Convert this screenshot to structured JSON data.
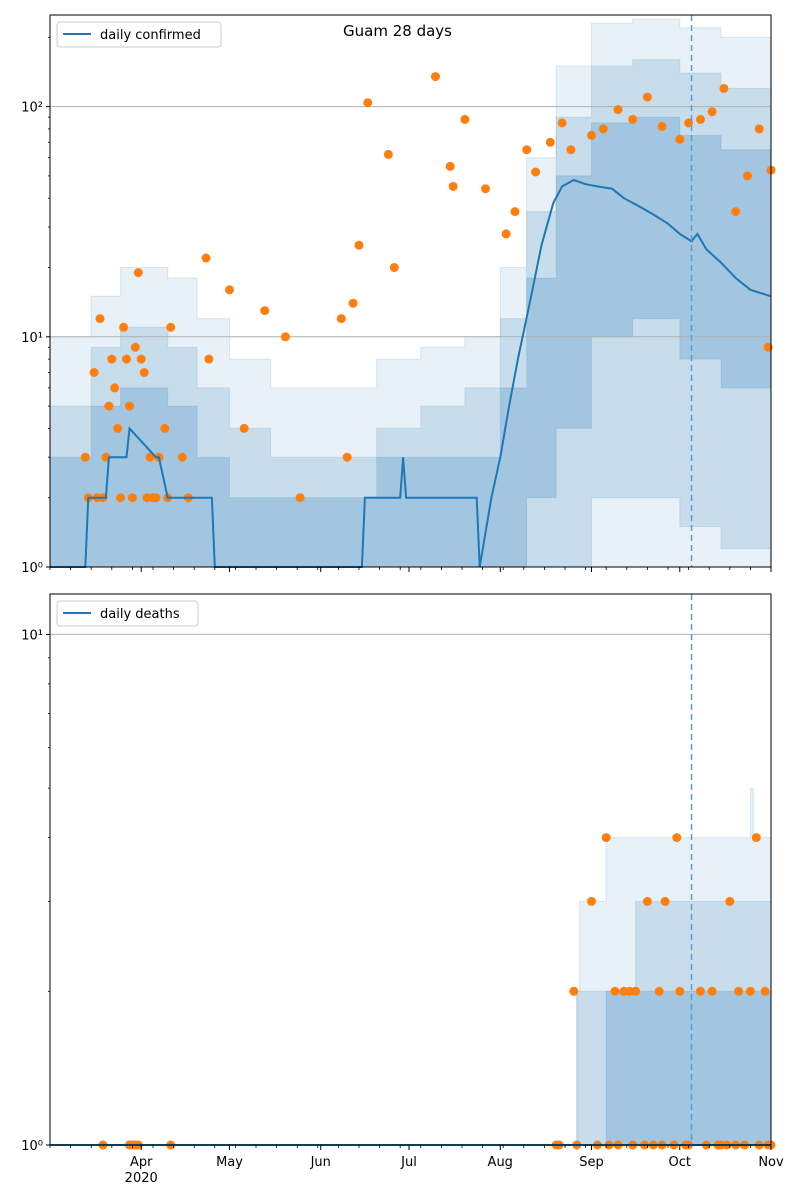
{
  "chart_data": [
    {
      "type": "line",
      "title": "Guam 28 days",
      "xlabel": "",
      "ylabel": "",
      "y_scale": "log",
      "ylim": [
        1,
        250
      ],
      "xlim": [
        "2020-03-01",
        "2020-11-01"
      ],
      "yticks": [
        {
          "v": 1,
          "label": "10⁰"
        },
        {
          "v": 10,
          "label": "10¹"
        },
        {
          "v": 100,
          "label": "10²"
        }
      ],
      "grid": "y-major",
      "legend": "top-left",
      "forecast_date": "2020-10-05",
      "series_line": {
        "name": "daily confirmed",
        "color": "#1f77b4",
        "x": [
          "2020-03-01",
          "2020-03-13",
          "2020-03-14",
          "2020-03-20",
          "2020-03-21",
          "2020-03-27",
          "2020-03-28",
          "2020-04-06",
          "2020-04-07",
          "2020-04-10",
          "2020-04-11",
          "2020-04-25",
          "2020-04-26",
          "2020-05-16",
          "2020-05-17",
          "2020-06-15",
          "2020-06-16",
          "2020-06-28",
          "2020-06-29",
          "2020-06-30",
          "2020-07-24",
          "2020-07-25",
          "2020-07-29",
          "2020-08-01",
          "2020-08-04",
          "2020-08-07",
          "2020-08-11",
          "2020-08-15",
          "2020-08-19",
          "2020-08-22",
          "2020-08-26",
          "2020-08-30",
          "2020-09-03",
          "2020-09-08",
          "2020-09-12",
          "2020-09-17",
          "2020-09-22",
          "2020-09-27",
          "2020-10-01",
          "2020-10-05",
          "2020-10-07",
          "2020-10-10",
          "2020-10-15",
          "2020-10-20",
          "2020-10-25",
          "2020-11-01"
        ],
        "y": [
          1,
          1,
          2,
          2,
          3,
          3,
          4,
          3,
          3,
          2,
          2,
          2,
          1,
          1,
          1,
          1,
          2,
          2,
          3,
          2,
          2,
          1,
          2,
          3,
          5,
          8,
          14,
          25,
          38,
          45,
          48,
          46,
          45,
          44,
          40,
          37,
          34,
          31,
          28,
          26,
          28,
          24,
          21,
          18,
          16,
          15
        ]
      },
      "band_outer": {
        "x": [
          "2020-03-01",
          "2020-03-15",
          "2020-03-25",
          "2020-04-10",
          "2020-04-20",
          "2020-05-01",
          "2020-05-15",
          "2020-06-01",
          "2020-06-20",
          "2020-07-05",
          "2020-07-20",
          "2020-08-01",
          "2020-08-10",
          "2020-08-20",
          "2020-09-01",
          "2020-09-15",
          "2020-10-01",
          "2020-10-15",
          "2020-11-01"
        ],
        "upper": [
          10,
          15,
          20,
          18,
          12,
          8,
          6,
          6,
          8,
          9,
          10,
          20,
          60,
          150,
          230,
          240,
          220,
          200,
          200
        ],
        "lower": [
          1,
          1,
          1,
          1,
          1,
          1,
          1,
          1,
          1,
          1,
          1,
          1,
          1,
          1,
          1,
          1,
          1,
          1,
          1
        ]
      },
      "band_mid": {
        "x": [
          "2020-03-01",
          "2020-03-15",
          "2020-03-25",
          "2020-04-10",
          "2020-04-20",
          "2020-05-01",
          "2020-05-15",
          "2020-06-01",
          "2020-06-20",
          "2020-07-05",
          "2020-07-20",
          "2020-08-01",
          "2020-08-10",
          "2020-08-20",
          "2020-09-01",
          "2020-09-15",
          "2020-10-01",
          "2020-10-15",
          "2020-11-01"
        ],
        "upper": [
          5,
          9,
          11,
          9,
          6,
          4,
          3,
          3,
          4,
          5,
          6,
          12,
          35,
          90,
          150,
          160,
          140,
          120,
          110
        ],
        "lower": [
          1,
          1,
          1,
          1,
          1,
          1,
          1,
          1,
          1,
          1,
          1,
          1,
          1,
          1,
          2,
          2,
          1.5,
          1.2,
          1
        ]
      },
      "band_inner": {
        "x": [
          "2020-03-01",
          "2020-03-15",
          "2020-03-25",
          "2020-04-10",
          "2020-04-20",
          "2020-05-01",
          "2020-05-15",
          "2020-06-01",
          "2020-06-20",
          "2020-07-05",
          "2020-07-20",
          "2020-08-01",
          "2020-08-10",
          "2020-08-20",
          "2020-09-01",
          "2020-09-15",
          "2020-10-01",
          "2020-10-15",
          "2020-11-01"
        ],
        "upper": [
          3,
          5,
          6,
          5,
          3,
          2,
          2,
          2,
          3,
          3,
          3,
          6,
          18,
          50,
          85,
          90,
          75,
          65,
          55
        ],
        "lower": [
          1,
          1,
          1,
          1,
          1,
          1,
          1,
          1,
          1,
          1,
          1,
          1,
          2,
          4,
          10,
          12,
          8,
          6,
          5
        ]
      },
      "points": {
        "color": "#ff7f0e",
        "x": [
          "2020-03-13",
          "2020-03-14",
          "2020-03-16",
          "2020-03-17",
          "2020-03-18",
          "2020-03-19",
          "2020-03-20",
          "2020-03-21",
          "2020-03-22",
          "2020-03-23",
          "2020-03-24",
          "2020-03-25",
          "2020-03-26",
          "2020-03-27",
          "2020-03-28",
          "2020-03-29",
          "2020-03-30",
          "2020-03-31",
          "2020-04-01",
          "2020-04-02",
          "2020-04-03",
          "2020-04-04",
          "2020-04-05",
          "2020-04-06",
          "2020-04-07",
          "2020-04-09",
          "2020-04-10",
          "2020-04-11",
          "2020-04-15",
          "2020-04-17",
          "2020-04-23",
          "2020-04-24",
          "2020-05-01",
          "2020-05-06",
          "2020-05-13",
          "2020-05-20",
          "2020-05-25",
          "2020-06-08",
          "2020-06-10",
          "2020-06-12",
          "2020-06-14",
          "2020-06-17",
          "2020-06-24",
          "2020-06-26",
          "2020-07-10",
          "2020-07-15",
          "2020-07-16",
          "2020-07-20",
          "2020-07-27",
          "2020-08-03",
          "2020-08-06",
          "2020-08-10",
          "2020-08-13",
          "2020-08-18",
          "2020-08-22",
          "2020-08-25",
          "2020-09-01",
          "2020-09-05",
          "2020-09-10",
          "2020-09-15",
          "2020-09-20",
          "2020-09-25",
          "2020-10-01",
          "2020-10-04",
          "2020-10-08",
          "2020-10-12",
          "2020-10-16",
          "2020-10-20",
          "2020-10-24",
          "2020-10-28",
          "2020-10-31",
          "2020-11-01"
        ],
        "y": [
          3,
          2,
          7,
          2,
          12,
          2,
          3,
          5,
          8,
          6,
          4,
          2,
          11,
          8,
          5,
          2,
          9,
          19,
          8,
          7,
          2,
          3,
          2,
          2,
          3,
          4,
          2,
          11,
          3,
          2,
          22,
          8,
          16,
          4,
          13,
          10,
          2,
          12,
          3,
          14,
          25,
          104,
          62,
          20,
          135,
          55,
          45,
          88,
          44,
          28,
          35,
          65,
          52,
          70,
          85,
          65,
          75,
          80,
          97,
          88,
          110,
          82,
          72,
          85,
          88,
          95,
          120,
          35,
          50,
          80,
          9,
          53
        ]
      }
    },
    {
      "type": "line",
      "title": "",
      "xlabel": "",
      "ylabel": "",
      "y_scale": "log",
      "ylim": [
        1,
        12
      ],
      "xlim": [
        "2020-03-01",
        "2020-11-01"
      ],
      "yticks": [
        {
          "v": 1,
          "label": "10⁰"
        },
        {
          "v": 10,
          "label": "10¹"
        }
      ],
      "xticks": [
        {
          "date": "2020-04-01",
          "label": "Apr",
          "sublabel": "2020"
        },
        {
          "date": "2020-05-01",
          "label": "May"
        },
        {
          "date": "2020-06-01",
          "label": "Jun"
        },
        {
          "date": "2020-07-01",
          "label": "Jul"
        },
        {
          "date": "2020-08-01",
          "label": "Aug"
        },
        {
          "date": "2020-09-01",
          "label": "Sep"
        },
        {
          "date": "2020-10-01",
          "label": "Oct"
        },
        {
          "date": "2020-11-01",
          "label": "Nov"
        }
      ],
      "grid": "y-major",
      "legend": "top-left",
      "forecast_date": "2020-10-05",
      "series_line": {
        "name": "daily deaths",
        "color": "#1f77b4",
        "x": [
          "2020-03-01",
          "2020-11-01"
        ],
        "y": [
          1,
          1
        ]
      },
      "band_outer": {
        "x": [
          "2020-08-21",
          "2020-08-27",
          "2020-08-28",
          "2020-09-05",
          "2020-09-06",
          "2020-09-15",
          "2020-09-16",
          "2020-10-20",
          "2020-10-25",
          "2020-10-26",
          "2020-11-01"
        ],
        "upper": [
          1,
          2,
          3,
          3,
          4,
          4,
          4,
          4,
          5,
          4,
          4
        ],
        "lower": [
          1,
          1,
          1,
          1,
          1,
          1,
          1,
          1,
          1,
          1,
          1
        ]
      },
      "band_mid": {
        "x": [
          "2020-08-27",
          "2020-09-05",
          "2020-09-06",
          "2020-09-15",
          "2020-09-16",
          "2020-10-10",
          "2020-11-01"
        ],
        "upper": [
          2,
          2,
          2,
          2,
          3,
          3,
          3
        ],
        "lower": [
          1,
          1,
          1,
          1,
          1,
          1,
          1
        ]
      },
      "band_inner": {
        "x": [
          "2020-09-06",
          "2020-10-05",
          "2020-11-01"
        ],
        "upper": [
          2,
          2,
          2
        ],
        "lower": [
          1,
          1,
          1
        ]
      },
      "points": {
        "color": "#ff7f0e",
        "x": [
          "2020-03-19",
          "2020-03-28",
          "2020-03-29",
          "2020-03-30",
          "2020-03-31",
          "2020-04-11",
          "2020-08-20",
          "2020-08-21",
          "2020-08-26",
          "2020-08-27",
          "2020-09-01",
          "2020-09-03",
          "2020-09-06",
          "2020-09-07",
          "2020-09-09",
          "2020-09-10",
          "2020-09-12",
          "2020-09-14",
          "2020-09-15",
          "2020-09-16",
          "2020-09-19",
          "2020-09-20",
          "2020-09-22",
          "2020-09-24",
          "2020-09-25",
          "2020-09-26",
          "2020-09-29",
          "2020-09-30",
          "2020-10-01",
          "2020-10-03",
          "2020-10-04",
          "2020-10-08",
          "2020-10-10",
          "2020-10-12",
          "2020-10-14",
          "2020-10-15",
          "2020-10-17",
          "2020-10-18",
          "2020-10-20",
          "2020-10-21",
          "2020-10-23",
          "2020-10-25",
          "2020-10-27",
          "2020-10-28",
          "2020-10-30",
          "2020-10-31",
          "2020-11-01"
        ],
        "y": [
          1,
          1,
          1,
          1,
          1,
          1,
          1,
          1,
          2,
          1,
          3,
          1,
          4,
          1,
          2,
          1,
          2,
          2,
          1,
          2,
          1,
          3,
          1,
          2,
          1,
          3,
          1,
          4,
          2,
          1,
          1,
          2,
          1,
          2,
          1,
          1,
          1,
          3,
          1,
          2,
          1,
          2,
          4,
          1,
          2,
          1,
          1
        ]
      }
    }
  ]
}
